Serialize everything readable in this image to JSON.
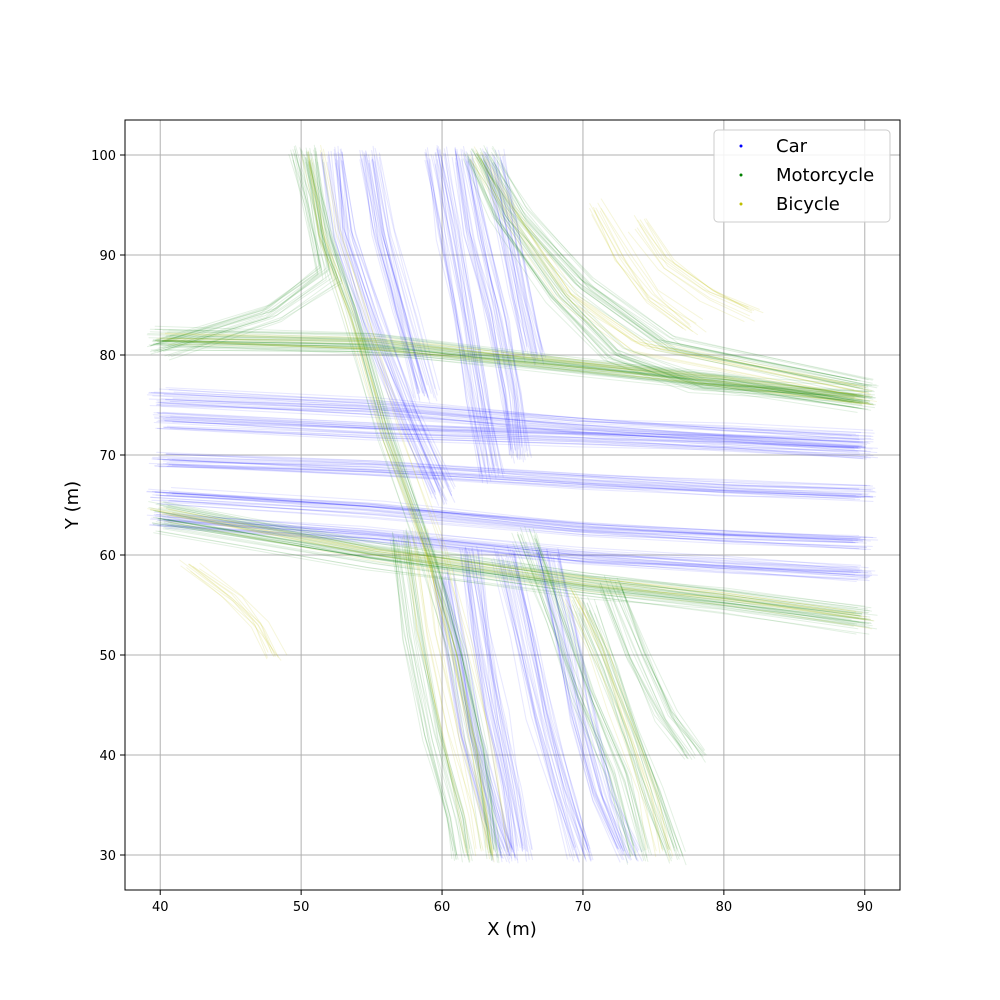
{
  "chart_data": {
    "type": "scatter",
    "title": "",
    "xlabel": "X (m)",
    "ylabel": "Y (m)",
    "xlim": [
      37.5,
      92.5
    ],
    "ylim": [
      26.5,
      103.5
    ],
    "xticks": [
      40,
      50,
      60,
      70,
      80,
      90
    ],
    "yticks": [
      30,
      40,
      50,
      60,
      70,
      80,
      90,
      100
    ],
    "grid": true,
    "legend_position": "top-right",
    "series": [
      {
        "name": "Car",
        "color": "#0000ff",
        "paths": [
          [
            [
              40,
              73.5
            ],
            [
              55,
              72.5
            ],
            [
              70,
              71.8
            ],
            [
              80,
              71.2
            ],
            [
              90,
              70.5
            ]
          ],
          [
            [
              40,
              69.5
            ],
            [
              55,
              68.8
            ],
            [
              70,
              67.5
            ],
            [
              80,
              66.8
            ],
            [
              90,
              66.2
            ]
          ],
          [
            [
              40,
              65.8
            ],
            [
              55,
              64.5
            ],
            [
              70,
              62.5
            ],
            [
              80,
              61.8
            ],
            [
              90,
              61.2
            ]
          ],
          [
            [
              40,
              63.5
            ],
            [
              55,
              62.0
            ],
            [
              70,
              59.8
            ],
            [
              80,
              59.0
            ],
            [
              90,
              58.2
            ]
          ],
          [
            [
              40,
              75.8
            ],
            [
              55,
              74.8
            ],
            [
              70,
              73.0
            ],
            [
              80,
              72.2
            ],
            [
              90,
              71.5
            ]
          ],
          [
            [
              52.3,
              100
            ],
            [
              53.0,
              92
            ],
            [
              55.0,
              83
            ],
            [
              57.5,
              74
            ],
            [
              60.0,
              66
            ]
          ],
          [
            [
              55.0,
              100
            ],
            [
              56.0,
              92
            ],
            [
              57.5,
              84
            ],
            [
              59.0,
              76
            ]
          ],
          [
            [
              59.5,
              100
            ],
            [
              60.5,
              92
            ],
            [
              61.5,
              84
            ],
            [
              62.5,
              76
            ],
            [
              63.5,
              68
            ]
          ],
          [
            [
              61.5,
              100
            ],
            [
              62.5,
              92
            ],
            [
              64.0,
              84
            ],
            [
              65.0,
              76
            ],
            [
              65.5,
              70
            ]
          ],
          [
            [
              63.5,
              100
            ],
            [
              64.5,
              93
            ],
            [
              65.5,
              86
            ],
            [
              66.5,
              80
            ]
          ],
          [
            [
              62.0,
              60
            ],
            [
              62.8,
              52
            ],
            [
              63.8,
              44
            ],
            [
              65.0,
              36
            ],
            [
              65.6,
              30
            ]
          ],
          [
            [
              64.5,
              60
            ],
            [
              65.8,
              52
            ],
            [
              67.0,
              44
            ],
            [
              68.5,
              36
            ],
            [
              69.8,
              30
            ]
          ],
          [
            [
              67.5,
              60
            ],
            [
              68.8,
              52
            ],
            [
              70.0,
              44
            ],
            [
              71.5,
              36
            ],
            [
              73.3,
              30
            ]
          ],
          [
            [
              60.0,
              58
            ],
            [
              61.0,
              50
            ],
            [
              62.0,
              42
            ],
            [
              63.5,
              34
            ],
            [
              64.5,
              30
            ]
          ]
        ]
      },
      {
        "name": "Motorcycle",
        "color": "#008000",
        "paths": [
          [
            [
              40,
              82.0
            ],
            [
              55,
              81.5
            ],
            [
              70,
              79.0
            ],
            [
              80,
              77.5
            ],
            [
              90,
              75.5
            ]
          ],
          [
            [
              40,
              81.0
            ],
            [
              55,
              80.5
            ],
            [
              70,
              78.5
            ],
            [
              80,
              77.0
            ],
            [
              90,
              74.8
            ]
          ],
          [
            [
              40,
              64.5
            ],
            [
              55,
              60.5
            ],
            [
              70,
              57.5
            ],
            [
              80,
              55.8
            ],
            [
              90,
              54.0
            ]
          ],
          [
            [
              40,
              63.0
            ],
            [
              55,
              59.5
            ],
            [
              70,
              56.5
            ],
            [
              80,
              55.0
            ],
            [
              90,
              53.0
            ]
          ],
          [
            [
              50.5,
              100
            ],
            [
              51.5,
              92
            ],
            [
              53.5,
              84
            ],
            [
              56.0,
              72
            ],
            [
              59.0,
              60
            ],
            [
              61.0,
              50
            ],
            [
              62.5,
              40
            ],
            [
              63.5,
              30
            ]
          ],
          [
            [
              62.0,
              100
            ],
            [
              64.0,
              94
            ],
            [
              68.0,
              86
            ],
            [
              72.0,
              80
            ],
            [
              78.0,
              77
            ],
            [
              90,
              76
            ]
          ],
          [
            [
              63.0,
              100
            ],
            [
              65.5,
              94
            ],
            [
              70.0,
              87
            ],
            [
              76.0,
              81
            ],
            [
              90,
              77
            ]
          ],
          [
            [
              40,
              80.5
            ],
            [
              48,
              84
            ],
            [
              52,
              88
            ],
            [
              51,
              95
            ],
            [
              50,
              100
            ]
          ],
          [
            [
              70.0,
              55
            ],
            [
              72.0,
              48
            ],
            [
              73.5,
              42
            ],
            [
              75.0,
              36
            ],
            [
              76.5,
              30
            ]
          ],
          [
            [
              72.0,
              57
            ],
            [
              74.0,
              50
            ],
            [
              76.0,
              44
            ],
            [
              78.0,
              40
            ]
          ],
          [
            [
              57.0,
              62
            ],
            [
              58.0,
              52
            ],
            [
              59.5,
              42
            ],
            [
              61.0,
              34
            ],
            [
              61.5,
              30
            ]
          ],
          [
            [
              66.0,
              62
            ],
            [
              68.0,
              54
            ],
            [
              70.0,
              46
            ],
            [
              72.5,
              38
            ],
            [
              74.0,
              30
            ]
          ]
        ]
      },
      {
        "name": "Bicycle",
        "color": "#bfbf00",
        "paths": [
          [
            [
              40,
              81.5
            ],
            [
              55,
              81.0
            ],
            [
              70,
              78.8
            ],
            [
              80,
              77.2
            ],
            [
              90,
              75.2
            ]
          ],
          [
            [
              40,
              64.0
            ],
            [
              55,
              60.0
            ],
            [
              70,
              57.0
            ],
            [
              80,
              55.5
            ],
            [
              90,
              53.5
            ]
          ],
          [
            [
              51.0,
              100
            ],
            [
              52.0,
              92
            ],
            [
              54.0,
              84
            ],
            [
              56.5,
              72
            ],
            [
              59.5,
              60
            ],
            [
              61.5,
              50
            ],
            [
              63.0,
              40
            ],
            [
              64.0,
              30
            ]
          ],
          [
            [
              62.5,
              100
            ],
            [
              65.0,
              94
            ],
            [
              69.0,
              86
            ],
            [
              74.0,
              81
            ],
            [
              90,
              76.5
            ]
          ],
          [
            [
              71.0,
              95
            ],
            [
              73.0,
              90
            ],
            [
              75.0,
              86
            ],
            [
              78.0,
              83
            ]
          ],
          [
            [
              74.0,
              93
            ],
            [
              76.0,
              89
            ],
            [
              79.0,
              86
            ],
            [
              82.0,
              84
            ]
          ],
          [
            [
              42.0,
              59.0
            ],
            [
              45.0,
              56.0
            ],
            [
              47.0,
              53.0
            ],
            [
              48.0,
              50.0
            ]
          ],
          [
            [
              69.0,
              56
            ],
            [
              71.0,
              50
            ],
            [
              72.5,
              44
            ],
            [
              74.5,
              36
            ],
            [
              75.5,
              30
            ]
          ],
          [
            [
              58.0,
              62
            ],
            [
              59.0,
              52
            ],
            [
              60.5,
              42
            ],
            [
              62.0,
              34
            ],
            [
              62.5,
              30
            ]
          ]
        ]
      }
    ]
  }
}
